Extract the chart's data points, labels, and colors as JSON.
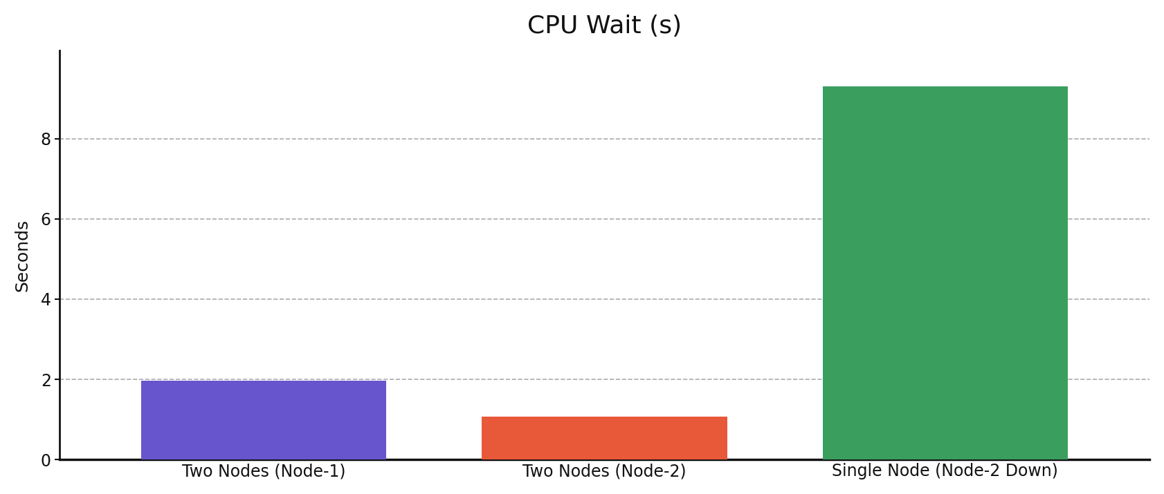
{
  "categories": [
    "Two Nodes (Node-1)",
    "Two Nodes (Node-2)",
    "Single Node (Node-2 Down)"
  ],
  "values": [
    1.97,
    1.08,
    9.3
  ],
  "bar_colors": [
    "#6655cc",
    "#e8593a",
    "#3a9e5f"
  ],
  "title": "CPU Wait (s)",
  "ylabel": "Seconds",
  "ylim": [
    0,
    10.2
  ],
  "yticks": [
    0,
    2,
    4,
    6,
    8
  ],
  "grid_color": "#aaaaaa",
  "grid_linestyle": "--",
  "background_color": "#ffffff",
  "title_fontsize": 26,
  "ylabel_fontsize": 18,
  "tick_fontsize": 17,
  "bar_width": 0.72
}
